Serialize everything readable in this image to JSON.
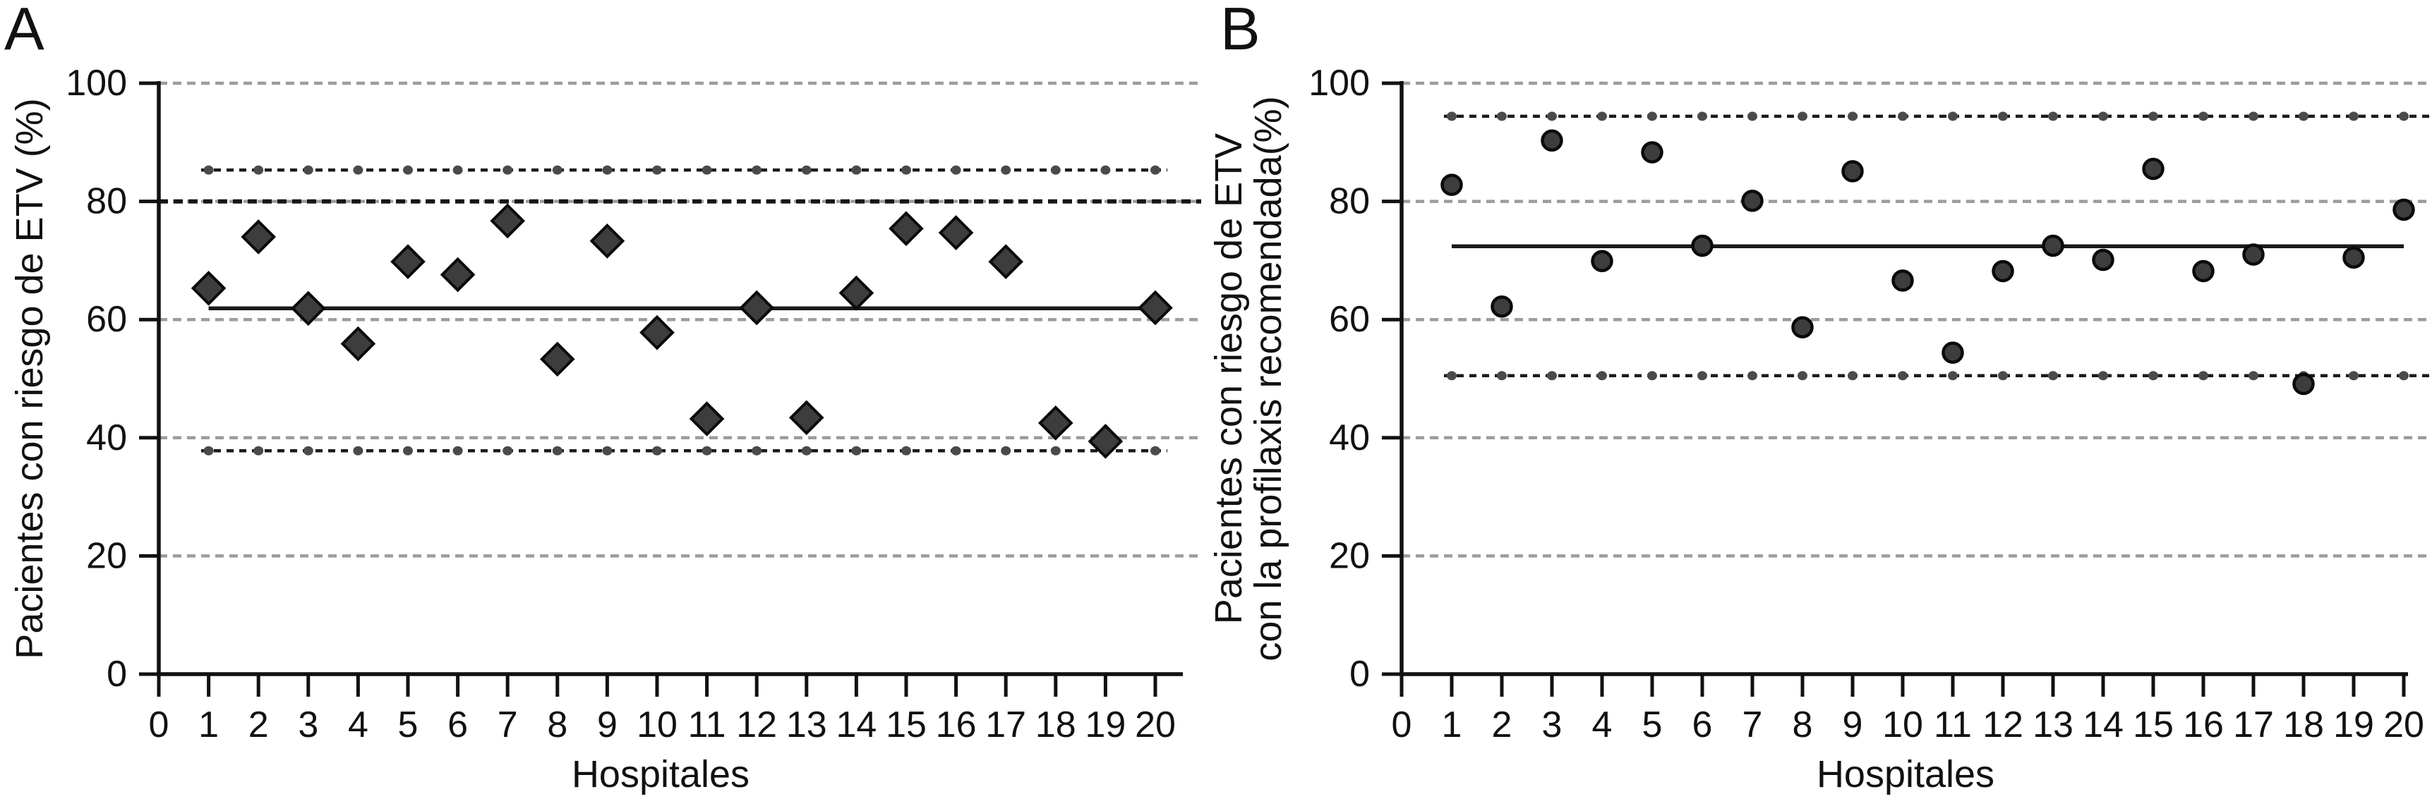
{
  "figure": {
    "panels": [
      {
        "letter": "A",
        "xlabel": "Hospitales",
        "ylabel_lines": [
          "Pacientes con riesgo de ETV (%)"
        ]
      },
      {
        "letter": "B",
        "xlabel": "Hospitales",
        "ylabel_lines": [
          "Pacientes con riesgo de ETV",
          "con la profilaxis recomendada(%)"
        ]
      }
    ]
  },
  "chart_data": [
    {
      "panel": "A",
      "type": "scatter",
      "marker": "diamond",
      "title": "",
      "xlabel": "Hospitales",
      "ylabel": "Pacientes con riesgo de ETV (%)",
      "x": [
        1,
        2,
        3,
        4,
        5,
        6,
        7,
        8,
        9,
        10,
        11,
        12,
        13,
        14,
        15,
        16,
        17,
        18,
        19,
        20
      ],
      "y": [
        65.3,
        74.0,
        61.9,
        55.9,
        69.8,
        67.6,
        76.7,
        53.3,
        73.3,
        57.8,
        43.2,
        62.0,
        43.4,
        64.5,
        75.4,
        74.7,
        69.8,
        42.5,
        39.4,
        62.0
      ],
      "mean_line": 61.9,
      "upper_control_limit": 85.3,
      "lower_control_limit": 37.8,
      "reference_line": 80,
      "xlim": [
        0,
        20
      ],
      "ylim": [
        0,
        100
      ],
      "xticks": [
        0,
        1,
        2,
        3,
        4,
        5,
        6,
        7,
        8,
        9,
        10,
        11,
        12,
        13,
        14,
        15,
        16,
        17,
        18,
        19,
        20
      ],
      "yticks": [
        0,
        20,
        40,
        60,
        80,
        100
      ],
      "ygridlines": [
        20,
        40,
        60,
        80,
        100
      ],
      "legend": "none",
      "grid": "horizontal-dashed"
    },
    {
      "panel": "B",
      "type": "scatter",
      "marker": "circle",
      "title": "",
      "xlabel": "Hospitales",
      "ylabel": "Pacientes con riesgo de ETV con la profilaxis recomendada(%)",
      "x": [
        1,
        2,
        3,
        4,
        5,
        6,
        7,
        8,
        9,
        10,
        11,
        12,
        13,
        14,
        15,
        16,
        17,
        18,
        19,
        20
      ],
      "y": [
        82.8,
        62.2,
        90.3,
        69.9,
        88.3,
        72.5,
        80.1,
        58.7,
        85.1,
        66.6,
        54.4,
        68.2,
        72.5,
        70.1,
        85.5,
        68.2,
        71.0,
        49.1,
        70.5,
        78.6
      ],
      "mean_line": 72.4,
      "upper_control_limit": 94.4,
      "lower_control_limit": 50.5,
      "reference_line": null,
      "xlim": [
        0,
        20
      ],
      "ylim": [
        0,
        100
      ],
      "xticks": [
        0,
        1,
        2,
        3,
        4,
        5,
        6,
        7,
        8,
        9,
        10,
        11,
        12,
        13,
        14,
        15,
        16,
        17,
        18,
        19,
        20
      ],
      "yticks": [
        0,
        20,
        40,
        60,
        80,
        100
      ],
      "ygridlines": [
        20,
        40,
        60,
        80,
        100
      ],
      "legend": "none",
      "grid": "horizontal-dashed"
    }
  ],
  "style": {
    "background": "#ffffff",
    "marker_fill": "#3d3d3d",
    "marker_stroke": "#0a0a0a",
    "axis_color": "#111111",
    "grid_color": "#9c9c9c",
    "reference_color": "#151515",
    "control_line_color": "#1a1a1a",
    "control_dot_color": "#4a4a4a",
    "mean_line_color": "#1a1a1a",
    "text_color": "#111111"
  }
}
